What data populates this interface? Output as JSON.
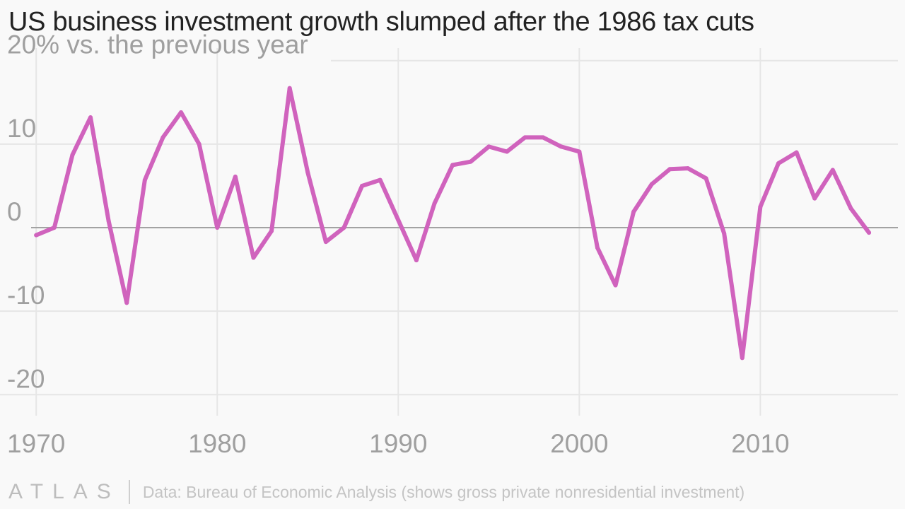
{
  "title": "US business investment growth slumped after the 1986 tax cuts",
  "footer": {
    "logo": "ATLAS",
    "source": "Data: Bureau of Economic Analysis (shows gross private nonresidential investment)"
  },
  "colors": {
    "line": "#d063bd",
    "grid": "#e6e6e6",
    "zero_line": "#a3a3a3",
    "tick_text": "#9f9f9f",
    "title": "#222222"
  },
  "chart_data": {
    "type": "line",
    "title": "US business investment growth slumped after the 1986 tax cuts",
    "ylabel": "20% vs. the previous year",
    "xlabel": "",
    "xlim": [
      1968,
      2017.6
    ],
    "ylim": [
      -21.5,
      21.5
    ],
    "grid": true,
    "x_ticks": [
      1970,
      1980,
      1990,
      2000,
      2010
    ],
    "x_tick_labels": [
      "1970",
      "1980",
      "1990",
      "2000",
      "2010"
    ],
    "y_ticks": [
      20,
      10,
      0,
      -10,
      -20
    ],
    "y_tick_labels": [
      "20% vs. the previous year",
      "10",
      "0",
      "-10",
      "-20"
    ],
    "series": [
      {
        "x": [
          1970,
          1971,
          1972,
          1973,
          1974,
          1975,
          1976,
          1977,
          1978,
          1979,
          1980,
          1981,
          1982,
          1983,
          1984,
          1985,
          1986,
          1987,
          1988,
          1989,
          1990,
          1991,
          1992,
          1993,
          1994,
          1995,
          1996,
          1997,
          1998,
          1999,
          2000,
          2001,
          2002,
          2003,
          2004,
          2005,
          2006,
          2007,
          2008,
          2009,
          2010,
          2011,
          2012,
          2013,
          2014,
          2015,
          2016
        ],
        "values": [
          -0.9,
          0.0,
          8.7,
          13.2,
          0.8,
          -9.0,
          5.7,
          10.8,
          13.8,
          10.0,
          0.0,
          6.1,
          -3.6,
          -0.4,
          16.7,
          6.6,
          -1.7,
          0.0,
          5.0,
          5.7,
          0.9,
          -3.9,
          2.9,
          7.5,
          7.9,
          9.7,
          9.1,
          10.8,
          10.8,
          9.7,
          9.1,
          -2.4,
          -6.9,
          1.9,
          5.2,
          7.0,
          7.1,
          5.9,
          -0.7,
          -15.6,
          2.5,
          7.7,
          9.0,
          3.5,
          6.9,
          2.3,
          -0.6
        ]
      }
    ]
  }
}
